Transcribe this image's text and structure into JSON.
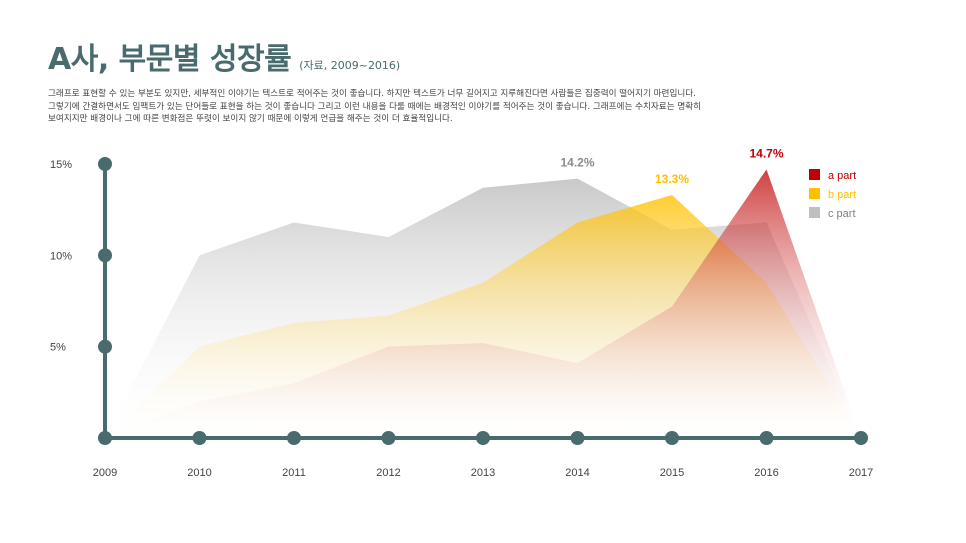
{
  "header": {
    "title": "A사, 부문별 성장률",
    "subtitle": "(자료, 2009~2016)"
  },
  "description": [
    "그래프로 표현할 수 있는 부분도 있지만, 세부적인 이야기는 텍스트로 적어주는 것이 좋습니다. 하지만 텍스트가 너무 길어지고 지루해진다면 사람들은 집중력이 떨어지기 마련입니다.",
    "그렇기에 간결하면서도 임팩트가 있는 단어들로 표현을 하는 것이 좋습니다 그리고 이런 내용을 다룰 때에는 배경적인 이야기를 적어주는 것이 좋습니다. 그래프에는 수치자료는 명확히",
    "보여지지만 배경이나 그에 따른 변화점은 뚜렷이 보이지 않기 때문에 이렇게 언급을 해주는 것이 더 효율적입니다."
  ],
  "colors": {
    "axis": "#4a6b6d",
    "a": "#c00000",
    "b": "#ffc000",
    "c": "#bfbfbf"
  },
  "chart_data": {
    "type": "area",
    "x": [
      "2009",
      "2010",
      "2011",
      "2012",
      "2013",
      "2014",
      "2015",
      "2016",
      "2017"
    ],
    "yticks": [
      "5%",
      "10%",
      "15%"
    ],
    "ylim": [
      0,
      15
    ],
    "series": [
      {
        "name": "c part",
        "key": "c",
        "values": [
          0,
          10,
          11.8,
          11,
          13.7,
          14.2,
          11.4,
          11.8,
          0
        ]
      },
      {
        "name": "b part",
        "key": "b",
        "values": [
          0,
          5,
          6.3,
          6.7,
          8.5,
          11.8,
          13.3,
          8.5,
          0
        ]
      },
      {
        "name": "a part",
        "key": "a",
        "values": [
          0,
          2,
          3,
          5,
          5.2,
          4.1,
          7.2,
          14.7,
          0
        ]
      }
    ],
    "legend": [
      "a part",
      "b part",
      "c part"
    ],
    "legend_position": "top-right",
    "annotations": [
      {
        "label": "14.2%",
        "series": "c",
        "x": "2014",
        "value": 14.2
      },
      {
        "label": "13.3%",
        "series": "b",
        "x": "2015",
        "value": 13.3
      },
      {
        "label": "14.7%",
        "series": "a",
        "x": "2016",
        "value": 14.7
      }
    ]
  }
}
